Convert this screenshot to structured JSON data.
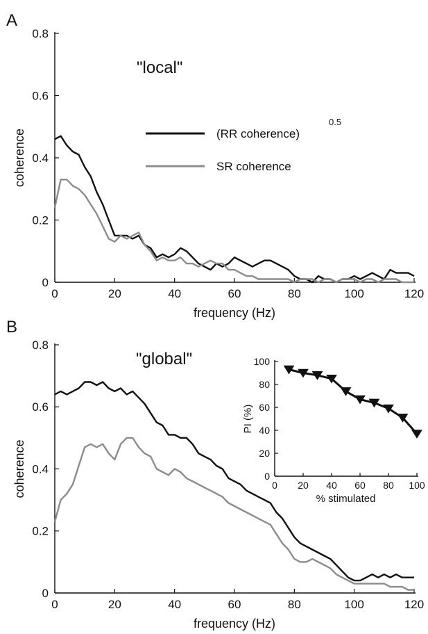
{
  "panels": {
    "a": {
      "letter": "A",
      "annotation": "\"local\"",
      "legend": {
        "rr_label": "(RR coherence)",
        "rr_superscript": "0.5",
        "sr_label": "SR coherence"
      }
    },
    "b": {
      "letter": "B",
      "annotation": "\"global\""
    }
  },
  "colors": {
    "rr": "#111111",
    "sr": "#8c8c8c",
    "axis": "#111111"
  },
  "chart_data": [
    {
      "id": "panel-a",
      "type": "line",
      "title": "",
      "xlabel": "frequency (Hz)",
      "ylabel": "coherence",
      "xlim": [
        0,
        120
      ],
      "ylim": [
        0,
        0.8
      ],
      "xticks": [
        0,
        20,
        40,
        60,
        80,
        100,
        120
      ],
      "yticks": [
        0,
        0.2,
        0.4,
        0.6,
        0.8
      ],
      "xtick_labels": [
        "0",
        "20",
        "40",
        "60",
        "80",
        "100",
        "120"
      ],
      "ytick_labels": [
        "0",
        "0.2",
        "0.4",
        "0.6",
        "0.8"
      ],
      "grid": false,
      "series": [
        {
          "name": "(RR coherence)^0.5",
          "color": "#111111",
          "x": [
            0,
            2,
            4,
            6,
            8,
            10,
            12,
            14,
            16,
            18,
            20,
            22,
            24,
            26,
            28,
            30,
            32,
            34,
            36,
            38,
            40,
            42,
            44,
            46,
            48,
            50,
            52,
            54,
            56,
            58,
            60,
            62,
            64,
            66,
            68,
            70,
            72,
            74,
            76,
            78,
            80,
            82,
            84,
            86,
            88,
            90,
            92,
            94,
            96,
            98,
            100,
            102,
            104,
            106,
            108,
            110,
            112,
            114,
            116,
            118,
            120
          ],
          "y": [
            0.46,
            0.47,
            0.44,
            0.42,
            0.41,
            0.37,
            0.34,
            0.29,
            0.25,
            0.2,
            0.15,
            0.15,
            0.15,
            0.14,
            0.15,
            0.12,
            0.11,
            0.08,
            0.09,
            0.08,
            0.09,
            0.11,
            0.1,
            0.08,
            0.06,
            0.05,
            0.04,
            0.06,
            0.05,
            0.06,
            0.08,
            0.07,
            0.06,
            0.05,
            0.06,
            0.07,
            0.07,
            0.06,
            0.05,
            0.04,
            0.02,
            0.01,
            0.01,
            0.0,
            0.02,
            0.01,
            0.01,
            0.0,
            0.01,
            0.01,
            0.02,
            0.01,
            0.02,
            0.03,
            0.02,
            0.01,
            0.04,
            0.03,
            0.03,
            0.03,
            0.02
          ]
        },
        {
          "name": "SR coherence",
          "color": "#8c8c8c",
          "x": [
            0,
            2,
            4,
            6,
            8,
            10,
            12,
            14,
            16,
            18,
            20,
            22,
            24,
            26,
            28,
            30,
            32,
            34,
            36,
            38,
            40,
            42,
            44,
            46,
            48,
            50,
            52,
            54,
            56,
            58,
            60,
            62,
            64,
            66,
            68,
            70,
            72,
            74,
            76,
            78,
            80,
            82,
            84,
            86,
            88,
            90,
            92,
            94,
            96,
            98,
            100,
            102,
            104,
            106,
            108,
            110,
            112,
            114,
            116,
            118,
            120
          ],
          "y": [
            0.24,
            0.33,
            0.33,
            0.31,
            0.3,
            0.28,
            0.25,
            0.22,
            0.18,
            0.14,
            0.13,
            0.15,
            0.14,
            0.15,
            0.16,
            0.12,
            0.1,
            0.07,
            0.08,
            0.07,
            0.07,
            0.08,
            0.06,
            0.06,
            0.05,
            0.06,
            0.07,
            0.06,
            0.06,
            0.04,
            0.04,
            0.03,
            0.02,
            0.02,
            0.01,
            0.01,
            0.01,
            0.01,
            0.01,
            0.01,
            0.0,
            0.01,
            0.01,
            0.01,
            0.0,
            0.01,
            0.01,
            0.0,
            0.01,
            0.01,
            0.01,
            0.0,
            0.01,
            0.01,
            0.0,
            0.01,
            0.01,
            0.01,
            0.0,
            0.0,
            0.0
          ]
        }
      ]
    },
    {
      "id": "panel-b",
      "type": "line",
      "title": "",
      "xlabel": "frequency (Hz)",
      "ylabel": "coherence",
      "xlim": [
        0,
        120
      ],
      "ylim": [
        0,
        0.8
      ],
      "xticks": [
        0,
        20,
        40,
        60,
        80,
        100,
        120
      ],
      "yticks": [
        0,
        0.2,
        0.4,
        0.6,
        0.8
      ],
      "xtick_labels": [
        "0",
        "20",
        "40",
        "60",
        "80",
        "100",
        "120"
      ],
      "ytick_labels": [
        "0",
        "0.2",
        "0.4",
        "0.6",
        "0.8"
      ],
      "grid": false,
      "series": [
        {
          "name": "(RR coherence)^0.5",
          "color": "#111111",
          "x": [
            0,
            2,
            4,
            6,
            8,
            10,
            12,
            14,
            16,
            18,
            20,
            22,
            24,
            26,
            28,
            30,
            32,
            34,
            36,
            38,
            40,
            42,
            44,
            46,
            48,
            50,
            52,
            54,
            56,
            58,
            60,
            62,
            64,
            66,
            68,
            70,
            72,
            74,
            76,
            78,
            80,
            82,
            84,
            86,
            88,
            90,
            92,
            94,
            96,
            98,
            100,
            102,
            104,
            106,
            108,
            110,
            112,
            114,
            116,
            118,
            120
          ],
          "y": [
            0.64,
            0.65,
            0.64,
            0.65,
            0.66,
            0.68,
            0.68,
            0.67,
            0.68,
            0.66,
            0.65,
            0.66,
            0.64,
            0.65,
            0.63,
            0.61,
            0.58,
            0.55,
            0.54,
            0.51,
            0.51,
            0.5,
            0.5,
            0.48,
            0.45,
            0.44,
            0.43,
            0.41,
            0.4,
            0.37,
            0.36,
            0.35,
            0.33,
            0.32,
            0.31,
            0.3,
            0.29,
            0.26,
            0.24,
            0.21,
            0.18,
            0.16,
            0.15,
            0.14,
            0.13,
            0.12,
            0.11,
            0.09,
            0.07,
            0.05,
            0.04,
            0.04,
            0.05,
            0.06,
            0.05,
            0.06,
            0.05,
            0.06,
            0.05,
            0.05,
            0.05
          ]
        },
        {
          "name": "SR coherence",
          "color": "#8c8c8c",
          "x": [
            0,
            2,
            4,
            6,
            8,
            10,
            12,
            14,
            16,
            18,
            20,
            22,
            24,
            26,
            28,
            30,
            32,
            34,
            36,
            38,
            40,
            42,
            44,
            46,
            48,
            50,
            52,
            54,
            56,
            58,
            60,
            62,
            64,
            66,
            68,
            70,
            72,
            74,
            76,
            78,
            80,
            82,
            84,
            86,
            88,
            90,
            92,
            94,
            96,
            98,
            100,
            102,
            104,
            106,
            108,
            110,
            112,
            114,
            116,
            118,
            120
          ],
          "y": [
            0.23,
            0.3,
            0.32,
            0.35,
            0.41,
            0.47,
            0.48,
            0.47,
            0.48,
            0.45,
            0.43,
            0.48,
            0.5,
            0.5,
            0.47,
            0.45,
            0.44,
            0.4,
            0.39,
            0.38,
            0.4,
            0.39,
            0.37,
            0.36,
            0.35,
            0.34,
            0.33,
            0.32,
            0.31,
            0.29,
            0.28,
            0.27,
            0.26,
            0.25,
            0.24,
            0.23,
            0.22,
            0.19,
            0.16,
            0.14,
            0.11,
            0.1,
            0.1,
            0.11,
            0.1,
            0.09,
            0.08,
            0.06,
            0.05,
            0.04,
            0.03,
            0.03,
            0.03,
            0.03,
            0.03,
            0.03,
            0.02,
            0.02,
            0.02,
            0.01,
            0.01
          ]
        }
      ]
    },
    {
      "id": "panel-b-inset",
      "type": "line",
      "title": "",
      "xlabel": "% stimulated",
      "ylabel": "PI (%)",
      "xlim": [
        0,
        100
      ],
      "ylim": [
        0,
        100
      ],
      "xticks": [
        0,
        20,
        40,
        60,
        80,
        100
      ],
      "yticks": [
        0,
        20,
        40,
        60,
        80,
        100
      ],
      "xtick_labels": [
        "0",
        "20",
        "40",
        "60",
        "80",
        "100"
      ],
      "ytick_labels": [
        "0",
        "20",
        "40",
        "60",
        "80",
        "100"
      ],
      "grid": false,
      "marker": "triangle-down",
      "series": [
        {
          "color": "#111111",
          "x": [
            10,
            20,
            30,
            40,
            50,
            60,
            70,
            80,
            90,
            100
          ],
          "y": [
            93,
            90,
            88,
            85,
            74,
            67,
            64,
            59,
            51,
            37
          ]
        }
      ]
    }
  ]
}
